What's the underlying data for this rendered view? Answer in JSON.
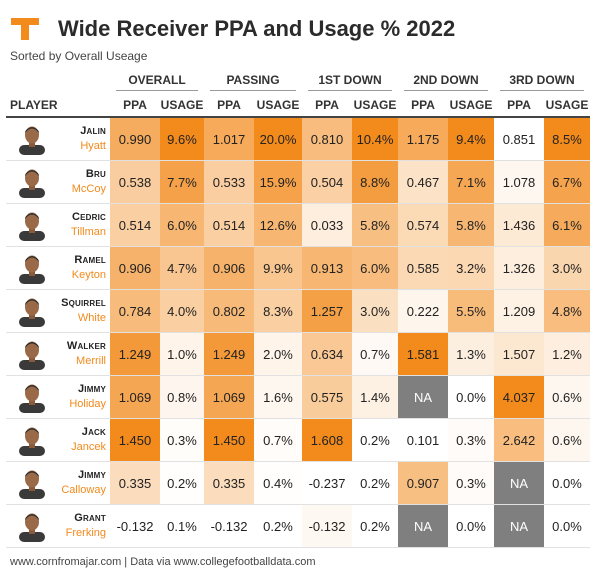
{
  "header": {
    "title": "Wide Receiver PPA and Usage % 2022",
    "subtitle": "Sorted by Overall Useage",
    "player_label": "PLAYER",
    "brand_color": "#f28a1c",
    "logo_icon": "tennessee-t-logo"
  },
  "footer": {
    "source": "www.cornfromajar.com | Data via www.collegefootballdata.com"
  },
  "chart_data": {
    "type": "table",
    "groups": [
      "OVERALL",
      "PASSING",
      "1ST DOWN",
      "2ND DOWN",
      "3RD DOWN"
    ],
    "subcolumns": [
      "PPA",
      "USAGE"
    ],
    "scale": {
      "low_color": "#ffffff",
      "high_color": "#f28a1c",
      "na_color": "#7f7f7f"
    },
    "rows": [
      {
        "first": "Jalin",
        "last": "Hyatt",
        "cells": [
          "0.990",
          "9.6%",
          "1.017",
          "20.0%",
          "0.810",
          "10.4%",
          "1.175",
          "9.4%",
          "0.851",
          "8.5%"
        ]
      },
      {
        "first": "Bru",
        "last": "McCoy",
        "cells": [
          "0.538",
          "7.7%",
          "0.533",
          "15.9%",
          "0.504",
          "8.8%",
          "0.467",
          "7.1%",
          "1.078",
          "6.7%"
        ]
      },
      {
        "first": "Cedric",
        "last": "Tillman",
        "cells": [
          "0.514",
          "6.0%",
          "0.514",
          "12.6%",
          "0.033",
          "5.8%",
          "0.574",
          "5.8%",
          "1.436",
          "6.1%"
        ]
      },
      {
        "first": "Ramel",
        "last": "Keyton",
        "cells": [
          "0.906",
          "4.7%",
          "0.906",
          "9.9%",
          "0.913",
          "6.0%",
          "0.585",
          "3.2%",
          "1.326",
          "3.0%"
        ]
      },
      {
        "first": "Squirrel",
        "last": "White",
        "cells": [
          "0.784",
          "4.0%",
          "0.802",
          "8.3%",
          "1.257",
          "3.0%",
          "0.222",
          "5.5%",
          "1.209",
          "4.8%"
        ]
      },
      {
        "first": "Walker",
        "last": "Merrill",
        "cells": [
          "1.249",
          "1.0%",
          "1.249",
          "2.0%",
          "0.634",
          "0.7%",
          "1.581",
          "1.3%",
          "1.507",
          "1.2%"
        ]
      },
      {
        "first": "Jimmy",
        "last": "Holiday",
        "cells": [
          "1.069",
          "0.8%",
          "1.069",
          "1.6%",
          "0.575",
          "1.4%",
          "NA",
          "0.0%",
          "4.037",
          "0.6%"
        ]
      },
      {
        "first": "Jack",
        "last": "Jancek",
        "cells": [
          "1.450",
          "0.3%",
          "1.450",
          "0.7%",
          "1.608",
          "0.2%",
          "0.101",
          "0.3%",
          "2.642",
          "0.6%"
        ]
      },
      {
        "first": "Jimmy",
        "last": "Calloway",
        "cells": [
          "0.335",
          "0.2%",
          "0.335",
          "0.4%",
          "-0.237",
          "0.2%",
          "0.907",
          "0.3%",
          "NA",
          "0.0%"
        ]
      },
      {
        "first": "Grant",
        "last": "Frerking",
        "cells": [
          "-0.132",
          "0.1%",
          "-0.132",
          "0.2%",
          "-0.132",
          "0.2%",
          "NA",
          "0.0%",
          "NA",
          "0.0%"
        ]
      }
    ]
  }
}
